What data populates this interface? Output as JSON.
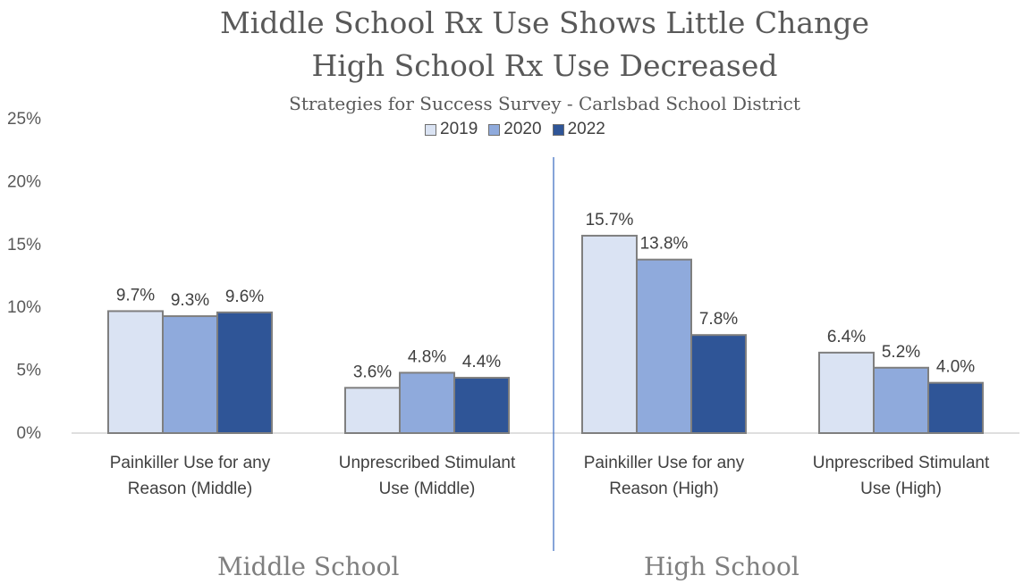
{
  "chart_data": {
    "type": "bar",
    "title_lines": [
      "Middle School Rx Use Shows Little Change",
      "High School Rx Use Decreased"
    ],
    "subtitle": "Strategies for Success Survey - Carlsbad School District",
    "categories": [
      [
        "Painkiller Use for any",
        "Reason (Middle)"
      ],
      [
        "Unprescribed Stimulant",
        "Use (Middle)"
      ],
      [
        "Painkiller Use for any",
        "Reason (High)"
      ],
      [
        "Unprescribed Stimulant",
        "Use (High)"
      ]
    ],
    "series": [
      {
        "name": "2019",
        "color": "#dae3f3",
        "values": [
          9.7,
          3.6,
          15.7,
          6.4
        ]
      },
      {
        "name": "2020",
        "color": "#8faadc",
        "values": [
          9.3,
          4.8,
          13.8,
          5.2
        ]
      },
      {
        "name": "2022",
        "color": "#2f5597",
        "values": [
          9.6,
          4.4,
          7.8,
          4.0
        ]
      }
    ],
    "y_ticks": [
      "0%",
      "5%",
      "10%",
      "15%",
      "20%",
      "25%"
    ],
    "ylim": [
      0,
      25
    ],
    "value_suffix": "%",
    "legend_position": "top",
    "grid": false,
    "group_labels": [
      "Middle School",
      "High School"
    ],
    "colors": {
      "bar_border": "#7f7f7f",
      "divider": "#4472c4",
      "axis": "#bfbfbf"
    }
  }
}
